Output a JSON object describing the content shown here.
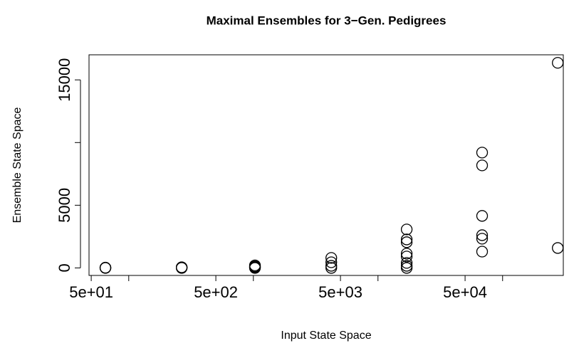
{
  "chart_data": {
    "type": "scatter",
    "title": "Maximal Ensembles for 3−Gen. Pedigrees",
    "x_label": "Input State Space",
    "y_label": "Ensemble State Space",
    "x_scale": "log",
    "color": "#000000",
    "x": [
      65,
      65,
      65,
      266,
      266,
      266,
      1030,
      1030,
      1030,
      1030,
      4220,
      4220,
      4220,
      4220,
      17000,
      17000,
      17000,
      17000,
      17000,
      17000,
      17000,
      17000,
      68500,
      68500,
      68500,
      68500,
      68500,
      68500,
      277000,
      277000
    ],
    "y": [
      0,
      10,
      20,
      0,
      30,
      50,
      0,
      60,
      120,
      200,
      800,
      450,
      170,
      0,
      3070,
      2270,
      2050,
      1140,
      910,
      400,
      170,
      0,
      9200,
      8180,
      4150,
      2610,
      2330,
      1300,
      16360,
      1590
    ],
    "xlim": [
      48,
      307000
    ],
    "ylim": [
      -600,
      17000
    ],
    "xticks": [
      {
        "value": 50,
        "label": "5e+01"
      },
      {
        "value": 500,
        "label": "5e+02"
      },
      {
        "value": 5000,
        "label": "5e+03"
      },
      {
        "value": 50000,
        "label": "5e+04"
      }
    ],
    "xminorticks": [
      100,
      1000,
      10000,
      100000
    ],
    "yticks": [
      0,
      5000,
      10000,
      15000
    ],
    "ytick_labels_shown": [
      0,
      5000,
      15000
    ]
  }
}
